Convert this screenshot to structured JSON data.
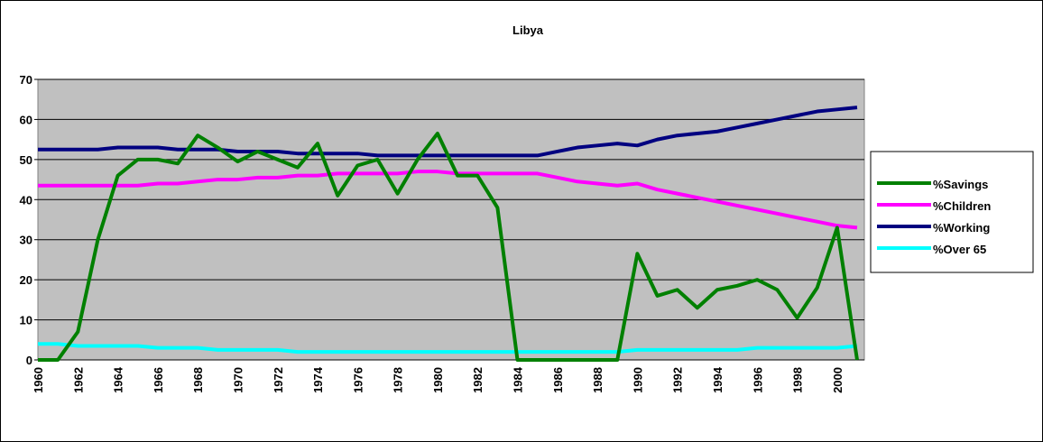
{
  "chart_data": {
    "type": "line",
    "title": "Libya",
    "categories": [
      "1960",
      null,
      "1962",
      null,
      "1964",
      null,
      "1966",
      null,
      "1968",
      null,
      "1970",
      null,
      "1972",
      null,
      "1974",
      null,
      "1976",
      null,
      "1978",
      null,
      "1980",
      null,
      "1982",
      null,
      "1984",
      null,
      "1986",
      null,
      "1988",
      null,
      "1990",
      null,
      "1992",
      null,
      "1994",
      null,
      "1996",
      null,
      "1998",
      null,
      "2000",
      null
    ],
    "series": [
      {
        "name": "%Savings",
        "color": "#008000",
        "values": [
          0,
          0,
          7,
          30,
          46,
          50,
          50,
          49,
          56,
          53,
          49.5,
          52,
          50,
          48,
          54,
          41,
          48.5,
          50,
          41.5,
          50,
          56.5,
          46,
          46,
          38,
          0,
          0,
          0,
          0,
          0,
          0,
          26.5,
          16,
          17.5,
          13,
          17.5,
          18.5,
          20,
          17.5,
          10.5,
          18,
          33,
          0
        ]
      },
      {
        "name": "%Children",
        "color": "#ff00ff",
        "values": [
          43.5,
          43.5,
          43.5,
          43.5,
          43.5,
          43.5,
          44,
          44,
          44.5,
          45,
          45,
          45.5,
          45.5,
          46,
          46,
          46.5,
          46.5,
          46.5,
          46.5,
          47,
          47,
          46.5,
          46.5,
          46.5,
          46.5,
          46.5,
          45.5,
          44.5,
          44,
          43.5,
          44,
          42.5,
          41.5,
          40.5,
          39.5,
          38.5,
          37.5,
          36.5,
          35.5,
          34.5,
          33.5,
          33
        ]
      },
      {
        "name": "%Working",
        "color": "#000080",
        "values": [
          52.5,
          52.5,
          52.5,
          52.5,
          53,
          53,
          53,
          52.5,
          52.5,
          52.5,
          52,
          52,
          52,
          51.5,
          51.5,
          51.5,
          51.5,
          51,
          51,
          51,
          51,
          51,
          51,
          51,
          51,
          51,
          52,
          53,
          53.5,
          54,
          53.5,
          55,
          56,
          56.5,
          57,
          58,
          59,
          60,
          61,
          62,
          62.5,
          63
        ]
      },
      {
        "name": "%Over 65",
        "color": "#00ffff",
        "values": [
          4,
          4,
          3.5,
          3.5,
          3.5,
          3.5,
          3,
          3,
          3,
          2.5,
          2.5,
          2.5,
          2.5,
          2,
          2,
          2,
          2,
          2,
          2,
          2,
          2,
          2,
          2,
          2,
          2,
          2,
          2,
          2,
          2,
          2,
          2.5,
          2.5,
          2.5,
          2.5,
          2.5,
          2.5,
          3,
          3,
          3,
          3,
          3,
          3.5
        ]
      }
    ],
    "ylim": [
      0,
      70
    ],
    "yticks": [
      0,
      10,
      20,
      30,
      40,
      50,
      60,
      70
    ],
    "grid": true,
    "legend": "right"
  }
}
